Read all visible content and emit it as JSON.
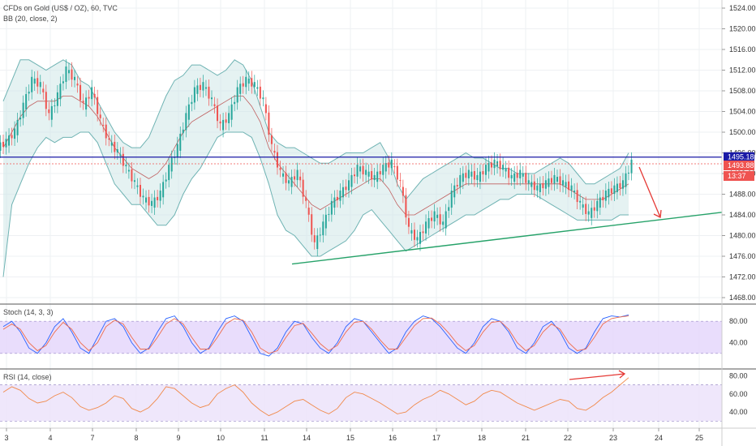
{
  "chart_data": [
    {
      "type": "candlestick",
      "title": "CFDs on Gold (US$ / OZ), 60, TVC",
      "indicator": "BB (20, close, 2)",
      "ylim": [
        1466,
        1526
      ],
      "y_ticks": [
        "1524.00",
        "1520.00",
        "1516.00",
        "1512.00",
        "1508.00",
        "1504.00",
        "1500.00",
        "1496.00",
        "1492.00",
        "1488.00",
        "1484.00",
        "1480.00",
        "1476.00",
        "1472.00",
        "1468.00"
      ],
      "x_ticks": [
        "3",
        "4",
        "7",
        "8",
        "9",
        "10",
        "11",
        "14",
        "15",
        "16",
        "17",
        "18",
        "21",
        "22",
        "23",
        "24",
        "25"
      ],
      "series": [
        {
          "name": "close",
          "values": [
            1498,
            1500,
            1505,
            1510,
            1509,
            1503,
            1507,
            1512,
            1510,
            1505,
            1508,
            1502,
            1498,
            1496,
            1493,
            1490,
            1487,
            1486,
            1488,
            1493,
            1497,
            1503,
            1508,
            1509,
            1506,
            1501,
            1503,
            1508,
            1510,
            1509,
            1506,
            1497,
            1492,
            1490,
            1492,
            1486,
            1478,
            1482,
            1486,
            1488,
            1490,
            1493,
            1492,
            1491,
            1493,
            1494,
            1490,
            1481,
            1479,
            1482,
            1484,
            1482,
            1488,
            1491,
            1492,
            1491,
            1493,
            1494,
            1493,
            1491,
            1492,
            1490,
            1489,
            1490,
            1491,
            1490,
            1489,
            1486,
            1484,
            1486,
            1488,
            1489,
            1490,
            1494
          ]
        },
        {
          "name": "Bollinger upper",
          "values": [
            1506,
            1510,
            1514,
            1514,
            1513,
            1512,
            1513,
            1514,
            1513,
            1510,
            1509,
            1506,
            1503,
            1500,
            1498,
            1497,
            1497,
            1499,
            1503,
            1507,
            1510,
            1511,
            1513,
            1513,
            1512,
            1511,
            1512,
            1514,
            1513,
            1510,
            1505,
            1500,
            1498,
            1497,
            1497,
            1496,
            1495,
            1494,
            1494,
            1495,
            1496,
            1496,
            1496,
            1497,
            1498,
            1495,
            1490,
            1487,
            1489,
            1491,
            1492,
            1493,
            1494,
            1495,
            1496,
            1495,
            1495,
            1494,
            1493,
            1493,
            1492,
            1492,
            1492,
            1493,
            1494,
            1495,
            1494,
            1492,
            1490,
            1490,
            1491,
            1492,
            1493,
            1496
          ]
        },
        {
          "name": "Bollinger basis",
          "values": [
            1497,
            1500,
            1503,
            1505,
            1506,
            1506,
            1506,
            1507,
            1507,
            1506,
            1505,
            1503,
            1500,
            1497,
            1495,
            1493,
            1492,
            1491,
            1492,
            1494,
            1497,
            1500,
            1502,
            1503,
            1504,
            1505,
            1506,
            1507,
            1507,
            1505,
            1502,
            1497,
            1494,
            1492,
            1490,
            1488,
            1486,
            1485,
            1486,
            1487,
            1488,
            1489,
            1490,
            1491,
            1491,
            1489,
            1486,
            1484,
            1484,
            1485,
            1486,
            1487,
            1488,
            1489,
            1490,
            1490,
            1490,
            1490,
            1490,
            1490,
            1490,
            1490,
            1490,
            1490,
            1490,
            1490,
            1489,
            1488,
            1487,
            1487,
            1487,
            1488,
            1489,
            1490
          ]
        },
        {
          "name": "Bollinger lower",
          "values": [
            1472,
            1486,
            1490,
            1494,
            1497,
            1499,
            1498,
            1499,
            1499,
            1500,
            1500,
            1498,
            1494,
            1490,
            1488,
            1486,
            1486,
            1484,
            1482,
            1482,
            1484,
            1488,
            1491,
            1493,
            1496,
            1499,
            1500,
            1500,
            1500,
            1499,
            1495,
            1490,
            1484,
            1481,
            1480,
            1478,
            1476,
            1476,
            1477,
            1478,
            1479,
            1481,
            1484,
            1485,
            1483,
            1481,
            1479,
            1477,
            1478,
            1479,
            1480,
            1481,
            1482,
            1483,
            1484,
            1484,
            1485,
            1486,
            1487,
            1487,
            1488,
            1488,
            1488,
            1487,
            1486,
            1485,
            1484,
            1483,
            1483,
            1483,
            1483,
            1483,
            1484,
            1484
          ]
        }
      ],
      "horizontal_lines": [
        {
          "label": "1495.18",
          "value": 1495.18,
          "color": "#1a1aa6"
        },
        {
          "label": "1493.88",
          "value": 1493.88,
          "color": "#ef5350"
        }
      ],
      "countdown": "13:37",
      "trendline": {
        "from": [
          11.5,
          1474.5
        ],
        "to": [
          25.5,
          1484.5
        ],
        "color": "#26a269"
      }
    },
    {
      "type": "line",
      "title": "Stoch (14, 3, 3)",
      "ylim": [
        0,
        100
      ],
      "y_ticks": [
        "80.00",
        "40.00"
      ],
      "band": [
        20,
        80
      ],
      "series": [
        {
          "name": "%K",
          "values": [
            70,
            80,
            60,
            30,
            20,
            40,
            70,
            85,
            60,
            30,
            20,
            50,
            80,
            85,
            70,
            40,
            20,
            30,
            60,
            85,
            90,
            70,
            40,
            20,
            30,
            60,
            85,
            90,
            80,
            50,
            20,
            15,
            30,
            60,
            80,
            75,
            50,
            30,
            20,
            40,
            70,
            85,
            80,
            60,
            40,
            20,
            30,
            60,
            80,
            90,
            85,
            70,
            50,
            30,
            20,
            40,
            70,
            85,
            80,
            60,
            30,
            20,
            40,
            70,
            80,
            60,
            30,
            20,
            30,
            60,
            85,
            90,
            88,
            92
          ]
        },
        {
          "name": "%D",
          "values": [
            65,
            75,
            65,
            40,
            25,
            35,
            60,
            78,
            65,
            40,
            25,
            40,
            70,
            82,
            75,
            50,
            28,
            28,
            50,
            75,
            85,
            75,
            50,
            28,
            28,
            50,
            75,
            85,
            82,
            60,
            30,
            20,
            25,
            50,
            72,
            76,
            58,
            38,
            25,
            35,
            60,
            78,
            80,
            65,
            45,
            28,
            28,
            50,
            72,
            85,
            86,
            75,
            58,
            38,
            25,
            35,
            60,
            78,
            80,
            65,
            40,
            25,
            35,
            60,
            75,
            65,
            40,
            25,
            28,
            50,
            75,
            85,
            88,
            90
          ]
        }
      ]
    },
    {
      "type": "line",
      "title": "RSI (14, close)",
      "ylim": [
        24,
        84
      ],
      "y_ticks": [
        "80.00",
        "60.00",
        "40.00"
      ],
      "band": [
        30,
        70
      ],
      "series": [
        {
          "name": "RSI",
          "values": [
            62,
            68,
            64,
            55,
            50,
            52,
            58,
            62,
            56,
            46,
            42,
            45,
            50,
            58,
            55,
            44,
            40,
            45,
            55,
            68,
            66,
            58,
            50,
            45,
            48,
            60,
            66,
            70,
            62,
            50,
            42,
            36,
            40,
            46,
            52,
            54,
            48,
            42,
            38,
            44,
            56,
            62,
            60,
            55,
            50,
            44,
            38,
            40,
            48,
            54,
            58,
            64,
            60,
            54,
            48,
            52,
            60,
            64,
            62,
            56,
            50,
            46,
            42,
            46,
            50,
            54,
            52,
            44,
            42,
            48,
            56,
            62,
            70,
            78
          ]
        }
      ]
    }
  ]
}
